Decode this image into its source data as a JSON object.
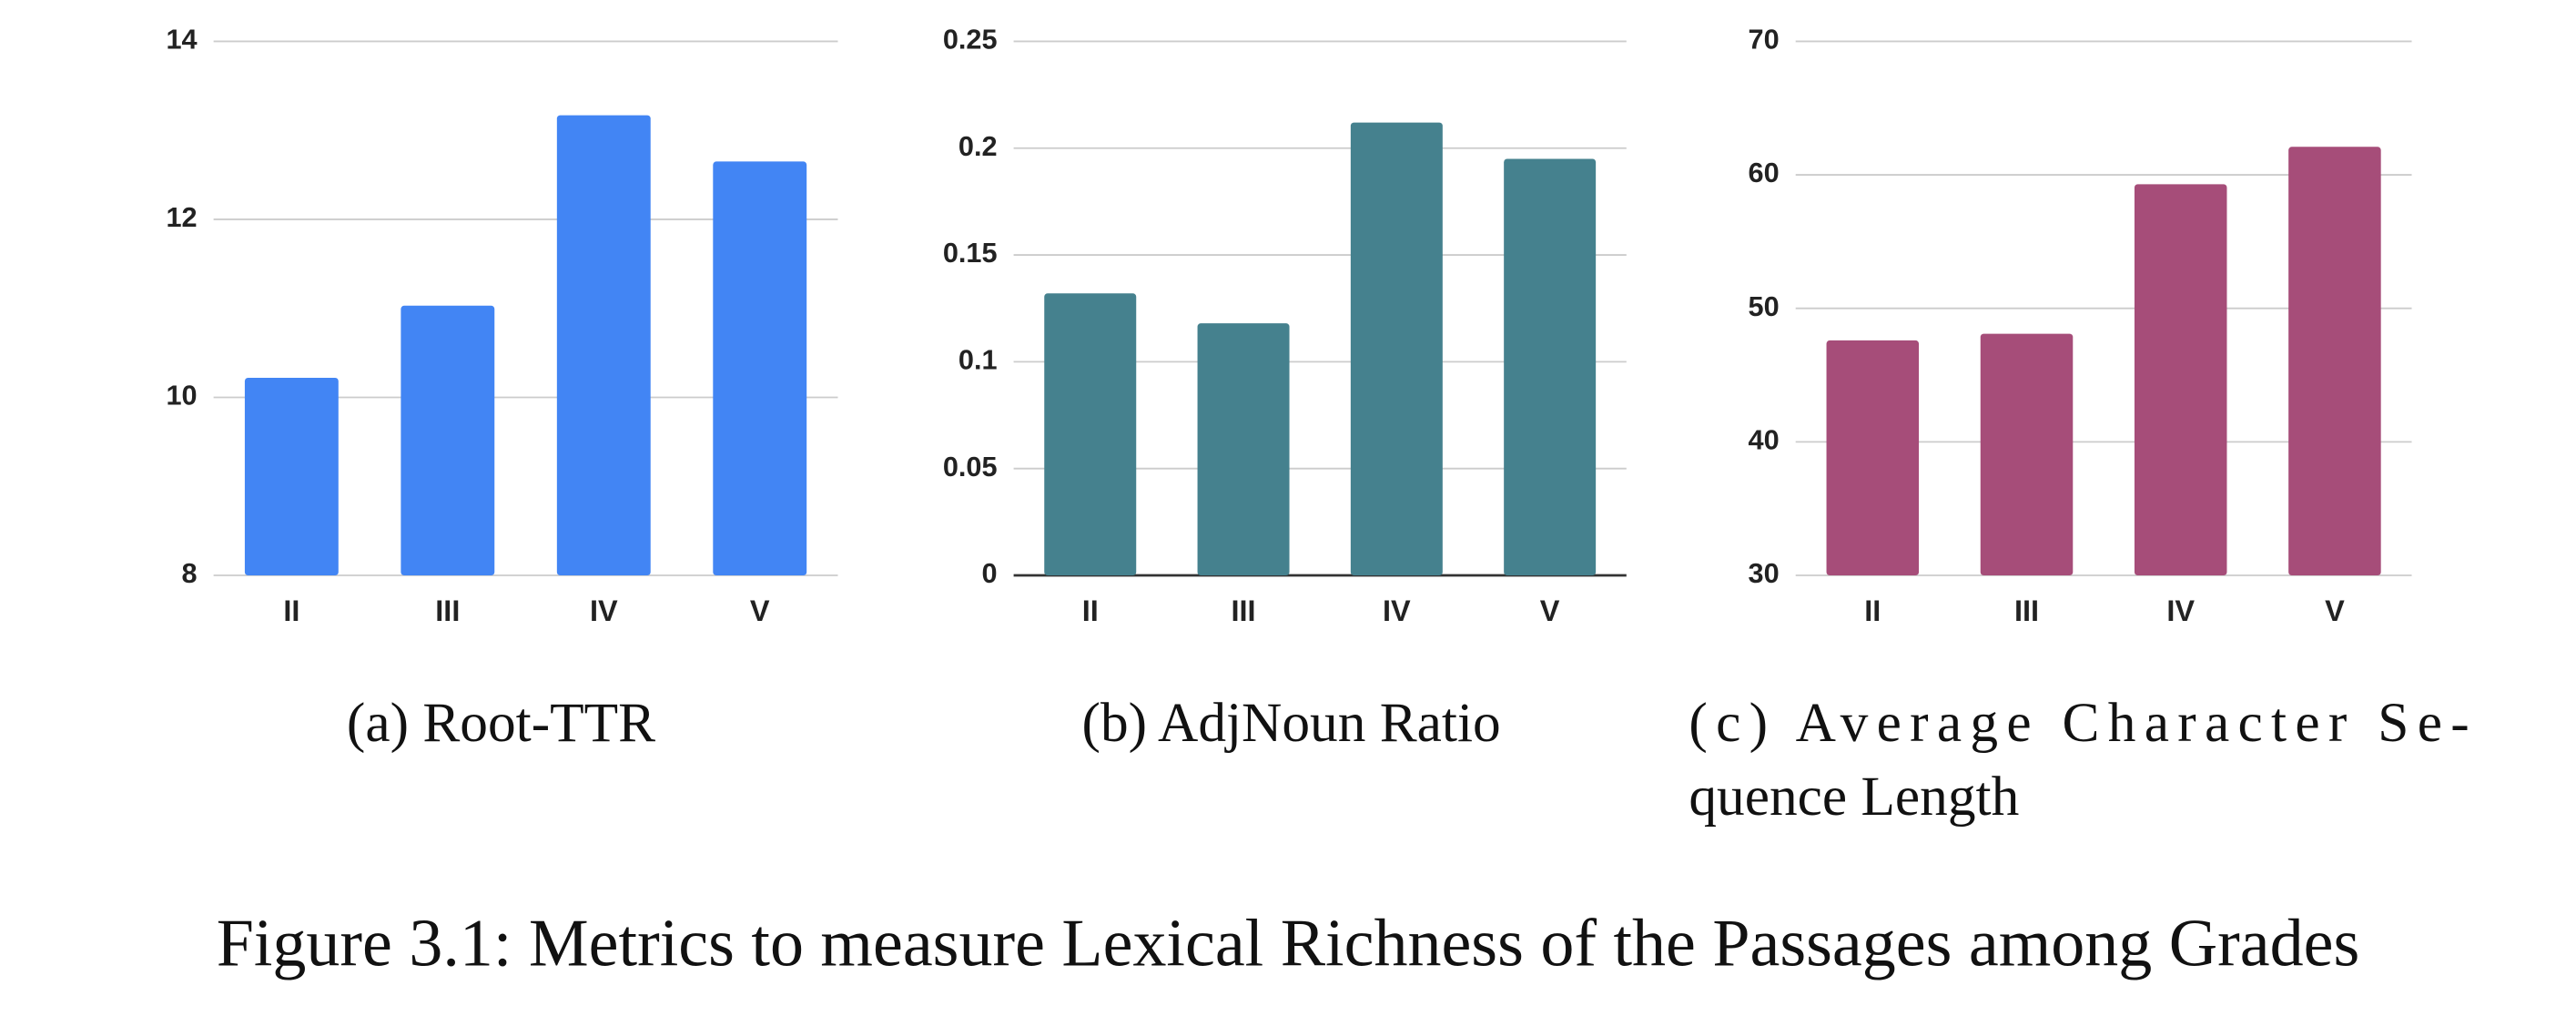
{
  "chart_data": [
    {
      "type": "bar",
      "caption": "(a) Root-TTR",
      "categories": [
        "II",
        "III",
        "IV",
        "V"
      ],
      "values": [
        10.22,
        11.03,
        13.17,
        12.65
      ],
      "color": "#4285f4",
      "ylim": [
        8,
        14
      ],
      "yticks": [
        8,
        10,
        12,
        14
      ],
      "grid": true
    },
    {
      "type": "bar",
      "caption": "(b) AdjNoun Ratio",
      "categories": [
        "II",
        "III",
        "IV",
        "V"
      ],
      "values": [
        0.132,
        0.118,
        0.212,
        0.195
      ],
      "color": "#45818e",
      "ylim": [
        0,
        0.25
      ],
      "yticks": [
        0,
        0.05,
        0.1,
        0.15,
        0.2,
        0.25
      ],
      "grid": true
    },
    {
      "type": "bar",
      "caption": [
        "(c) Average Character Se-",
        "quence Length"
      ],
      "categories": [
        "II",
        "III",
        "IV",
        "V"
      ],
      "values": [
        47.6,
        48.1,
        59.3,
        62.1
      ],
      "color": "#a64d79",
      "ylim": [
        30,
        70
      ],
      "yticks": [
        30,
        40,
        50,
        60,
        70
      ],
      "grid": true
    }
  ],
  "figure_caption": "Figure 3.1: Metrics to measure Lexical Richness of the Passages among Grades"
}
